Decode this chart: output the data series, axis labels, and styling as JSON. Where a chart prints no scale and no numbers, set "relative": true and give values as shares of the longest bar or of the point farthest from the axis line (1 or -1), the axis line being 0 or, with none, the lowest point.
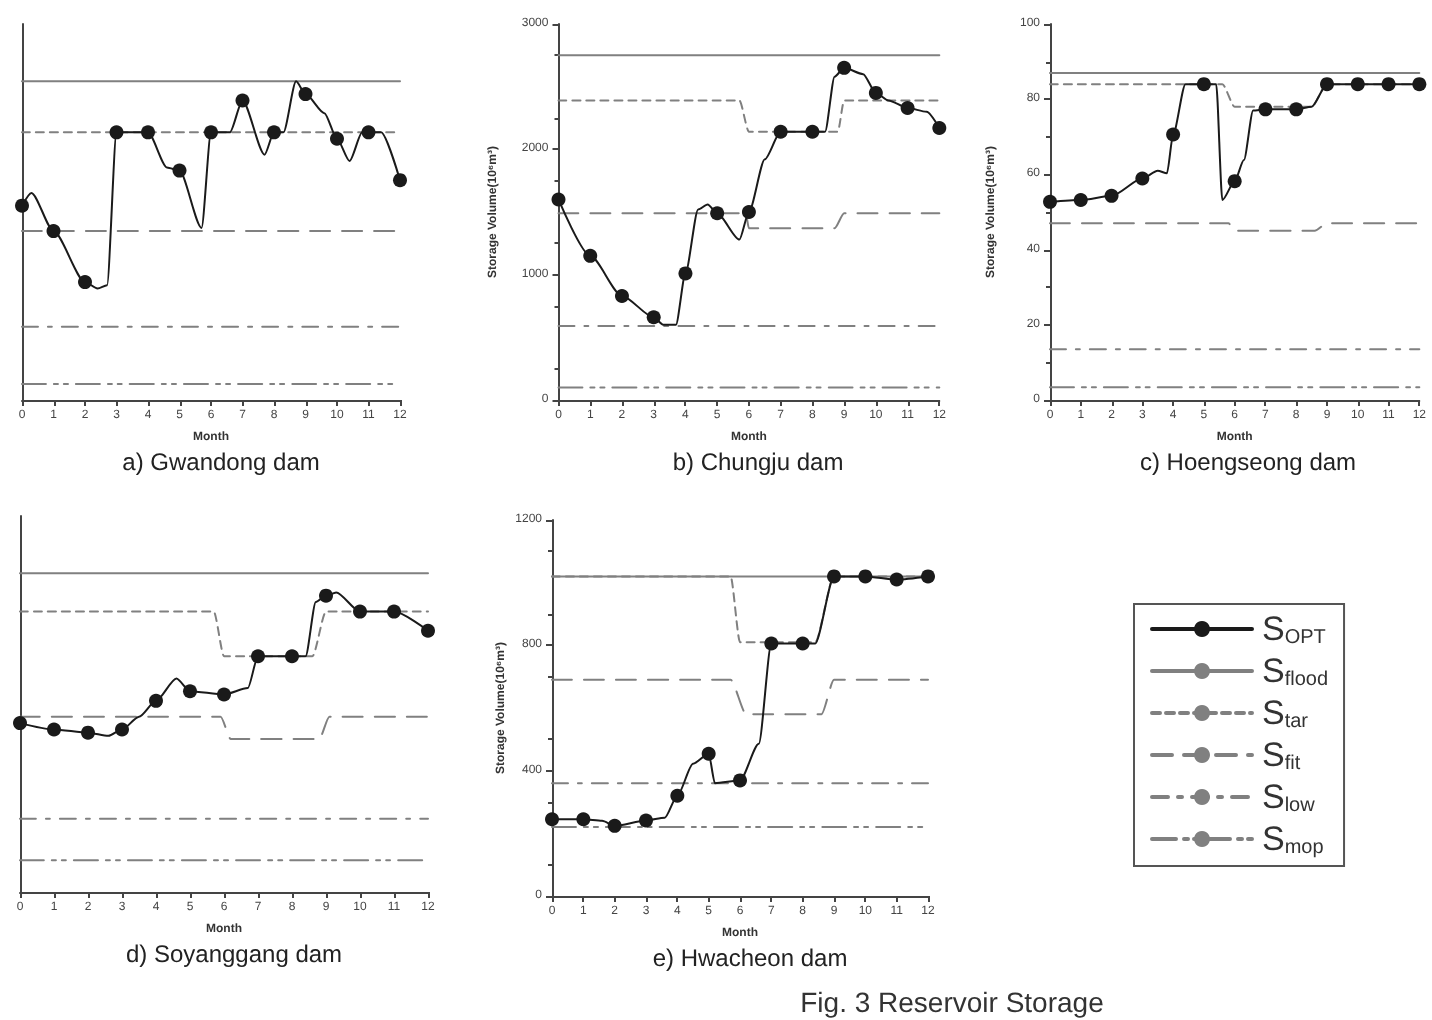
{
  "chart_data": [
    {
      "type": "line",
      "title": "a) Gwandong dam",
      "xlabel": "Month",
      "relative": true,
      "tick_labels": "x",
      "xlim": [
        0,
        12
      ],
      "xticks": [
        0,
        1,
        2,
        3,
        4,
        5,
        6,
        7,
        8,
        9,
        10,
        11,
        12
      ],
      "grid": false,
      "series": [
        {
          "color": "#1a1a1a",
          "marker": "circle",
          "line_style": "solid",
          "x": [
            0,
            0.3,
            1,
            2,
            2.4,
            2.7,
            3,
            4,
            4.6,
            5,
            5.7,
            6,
            6.6,
            7,
            7.7,
            8,
            8.3,
            8.7,
            9,
            9.6,
            10,
            10.4,
            10.8,
            11,
            11.4,
            12
          ],
          "values": [
            0.61,
            0.65,
            0.53,
            0.37,
            0.35,
            0.36,
            0.84,
            0.84,
            0.73,
            0.72,
            0.54,
            0.84,
            0.84,
            0.94,
            0.77,
            0.84,
            0.84,
            1,
            0.96,
            0.9,
            0.82,
            0.75,
            0.84,
            0.84,
            0.84,
            0.69
          ]
        },
        {
          "color": "#808080",
          "marker": "none",
          "line_style": "solid",
          "x": [
            0,
            12
          ],
          "values": [
            1,
            1
          ]
        },
        {
          "color": "#808080",
          "marker": "none",
          "line_style": "dotted",
          "x": [
            0,
            12
          ],
          "values": [
            0.84,
            0.84
          ]
        },
        {
          "color": "#808080",
          "marker": "none",
          "line_style": "dashed",
          "x": [
            0,
            12
          ],
          "values": [
            0.53,
            0.53
          ]
        },
        {
          "color": "#808080",
          "marker": "none",
          "line_style": "dashed",
          "x": [
            0,
            12
          ],
          "values": [
            0.23,
            0.23
          ]
        },
        {
          "color": "#808080",
          "marker": "none",
          "line_style": "dashed",
          "x": [
            0,
            12
          ],
          "values": [
            0.05,
            0.05
          ]
        }
      ]
    },
    {
      "type": "line",
      "title": "b) Chungju dam",
      "xlabel": "Month",
      "ylabel": "Storage Volume(10⁶m³)",
      "xlim": [
        0,
        12
      ],
      "xticks": [
        0,
        1,
        2,
        3,
        4,
        5,
        6,
        7,
        8,
        9,
        10,
        11,
        12
      ],
      "ylim": [
        0,
        3000
      ],
      "yticks": [
        0,
        1000,
        2000,
        3000
      ],
      "grid": false,
      "series": [
        {
          "color": "#1a1a1a",
          "marker": "circle",
          "line_style": "solid",
          "x": [
            0,
            1,
            2,
            3,
            3.3,
            3.7,
            4,
            4.4,
            4.7,
            5,
            5.7,
            6,
            6.5,
            7,
            8,
            8.4,
            8.7,
            9,
            9.6,
            10,
            10.4,
            11,
            11.6,
            12
          ],
          "values": [
            1600,
            1150,
            830,
            660,
            600,
            600,
            1010,
            1520,
            1560,
            1490,
            1280,
            1500,
            1920,
            2140,
            2140,
            2140,
            2580,
            2650,
            2600,
            2450,
            2390,
            2330,
            2300,
            2170
          ]
        },
        {
          "color": "#808080",
          "marker": "none",
          "line_style": "solid",
          "x": [
            0,
            12
          ],
          "values": [
            2750,
            2750
          ]
        },
        {
          "color": "#808080",
          "marker": "none",
          "line_style": "dotted",
          "x": [
            0,
            5.7,
            6,
            8.8,
            9,
            12
          ],
          "values": [
            2390,
            2390,
            2140,
            2140,
            2390,
            2390
          ]
        },
        {
          "color": "#808080",
          "marker": "none",
          "line_style": "dashed",
          "x": [
            0,
            5.9,
            6,
            8.7,
            9,
            12
          ],
          "values": [
            1490,
            1490,
            1370,
            1370,
            1490,
            1490
          ]
        },
        {
          "color": "#808080",
          "marker": "none",
          "line_style": "dashed",
          "x": [
            0,
            12
          ],
          "values": [
            590,
            590
          ]
        },
        {
          "color": "#808080",
          "marker": "none",
          "line_style": "dashed",
          "x": [
            0,
            12
          ],
          "values": [
            100,
            100
          ]
        }
      ]
    },
    {
      "type": "line",
      "title": "c) Hoengseong dam",
      "xlabel": "Month",
      "ylabel": "Storage Volume(10⁶m³)",
      "xlim": [
        0,
        12
      ],
      "xticks": [
        0,
        1,
        2,
        3,
        4,
        5,
        6,
        7,
        8,
        9,
        10,
        11,
        12
      ],
      "ylim": [
        0,
        100
      ],
      "yticks": [
        0,
        20,
        40,
        60,
        80,
        100
      ],
      "grid": false,
      "series": [
        {
          "color": "#1a1a1a",
          "marker": "circle",
          "line_style": "solid",
          "x": [
            0,
            1,
            2,
            3,
            3.5,
            3.8,
            4,
            4.4,
            5,
            5.4,
            5.6,
            6,
            6.3,
            6.6,
            7,
            8,
            8.5,
            9,
            10,
            11,
            12
          ],
          "values": [
            52.7,
            53.2,
            54.3,
            58.9,
            61,
            60.3,
            70.6,
            84,
            84,
            84,
            53.2,
            58.2,
            63.8,
            77,
            77.3,
            77.3,
            78,
            84,
            84,
            84,
            84
          ]
        },
        {
          "color": "#808080",
          "marker": "none",
          "line_style": "solid",
          "x": [
            0,
            12
          ],
          "values": [
            87,
            87
          ]
        },
        {
          "color": "#808080",
          "marker": "none",
          "line_style": "dotted",
          "x": [
            0,
            5.6,
            6,
            8.5,
            9,
            12
          ],
          "values": [
            84,
            84,
            78,
            78,
            84,
            84
          ]
        },
        {
          "color": "#808080",
          "marker": "none",
          "line_style": "dashed",
          "x": [
            0,
            5.8,
            6,
            8.6,
            9,
            12
          ],
          "values": [
            47,
            47,
            45,
            45,
            47,
            47
          ]
        },
        {
          "color": "#808080",
          "marker": "none",
          "line_style": "dashed",
          "x": [
            0,
            12
          ],
          "values": [
            13.5,
            13.5
          ]
        },
        {
          "color": "#808080",
          "marker": "none",
          "line_style": "dashed",
          "x": [
            0,
            12
          ],
          "values": [
            3.4,
            3.4
          ]
        }
      ]
    },
    {
      "type": "line",
      "title": "d) Soyanggang dam",
      "xlabel": "Month",
      "relative": true,
      "tick_labels": "x",
      "xlim": [
        0,
        12
      ],
      "xticks": [
        0,
        1,
        2,
        3,
        4,
        5,
        6,
        7,
        8,
        9,
        10,
        11,
        12
      ],
      "grid": false,
      "series": [
        {
          "color": "#1a1a1a",
          "marker": "circle",
          "line_style": "solid",
          "x": [
            0,
            1,
            2,
            2.6,
            3,
            3.5,
            4,
            4.6,
            5,
            6,
            6.7,
            7,
            8,
            8.4,
            8.7,
            9,
            9.3,
            10,
            11,
            12
          ],
          "values": [
            0.53,
            0.51,
            0.5,
            0.49,
            0.51,
            0.55,
            0.6,
            0.67,
            0.63,
            0.62,
            0.64,
            0.74,
            0.74,
            0.74,
            0.91,
            0.93,
            0.94,
            0.88,
            0.88,
            0.82
          ]
        },
        {
          "color": "#808080",
          "marker": "none",
          "line_style": "solid",
          "x": [
            0,
            12
          ],
          "values": [
            1,
            1
          ]
        },
        {
          "color": "#808080",
          "marker": "none",
          "line_style": "dotted",
          "x": [
            0,
            5.7,
            6,
            8.6,
            9,
            12
          ],
          "values": [
            0.88,
            0.88,
            0.74,
            0.74,
            0.88,
            0.88
          ]
        },
        {
          "color": "#808080",
          "marker": "none",
          "line_style": "dashed",
          "x": [
            0,
            5.9,
            6.2,
            8.8,
            9.1,
            12
          ],
          "values": [
            0.55,
            0.55,
            0.48,
            0.48,
            0.55,
            0.55
          ]
        },
        {
          "color": "#808080",
          "marker": "none",
          "line_style": "dashed",
          "x": [
            0,
            12
          ],
          "values": [
            0.23,
            0.23
          ]
        },
        {
          "color": "#808080",
          "marker": "none",
          "line_style": "dashed",
          "x": [
            0,
            12
          ],
          "values": [
            0.1,
            0.1
          ]
        }
      ]
    },
    {
      "type": "line",
      "title": "e) Hwacheon dam",
      "xlabel": "Month",
      "ylabel": "Storage Volume(10⁶m³)",
      "annotations": [
        "Fig. 3 Reservoir Storage"
      ],
      "xlim": [
        0,
        12
      ],
      "xticks": [
        0,
        1,
        2,
        3,
        4,
        5,
        6,
        7,
        8,
        9,
        10,
        11,
        12
      ],
      "ylim": [
        0,
        1200
      ],
      "yticks": [
        0,
        400,
        800,
        1200
      ],
      "grid": false,
      "legend": "right",
      "series": [
        {
          "name": "S$_{OPT}$",
          "color": "#1a1a1a",
          "marker": "circle",
          "line_style": "solid",
          "x": [
            0,
            1,
            1.6,
            2,
            3,
            3.6,
            4,
            4.5,
            5,
            5.2,
            6,
            6.6,
            7,
            8,
            8.4,
            9,
            10,
            11,
            12
          ],
          "values": [
            245,
            245,
            240,
            224,
            241,
            250,
            320,
            422,
            454,
            360,
            369,
            486,
            806,
            806,
            806,
            1020,
            1020,
            1010,
            1020
          ]
        },
        {
          "name": "S$_{flood}$",
          "color": "#808080",
          "marker": "none",
          "line_style": "solid",
          "x": [
            0,
            12
          ],
          "values": [
            1020,
            1020
          ]
        },
        {
          "name": "S$_{tar}$",
          "color": "#808080",
          "marker": "none",
          "line_style": "dotted",
          "x": [
            0,
            5.7,
            6,
            8.4,
            9,
            12
          ],
          "values": [
            1020,
            1020,
            810,
            810,
            1020,
            1020
          ]
        },
        {
          "name": "S$_{fit}$",
          "color": "#808080",
          "marker": "none",
          "line_style": "dashed",
          "x": [
            0,
            5.7,
            6.2,
            8.6,
            9,
            12
          ],
          "values": [
            690,
            690,
            580,
            580,
            690,
            690
          ]
        },
        {
          "name": "S$_{low}$",
          "color": "#808080",
          "marker": "none",
          "line_style": "dashed",
          "x": [
            0,
            12
          ],
          "values": [
            360,
            360
          ]
        },
        {
          "name": "S$_{mop}$",
          "color": "#808080",
          "marker": "none",
          "line_style": "dashed",
          "x": [
            0,
            12
          ],
          "values": [
            220,
            220
          ]
        }
      ]
    }
  ]
}
